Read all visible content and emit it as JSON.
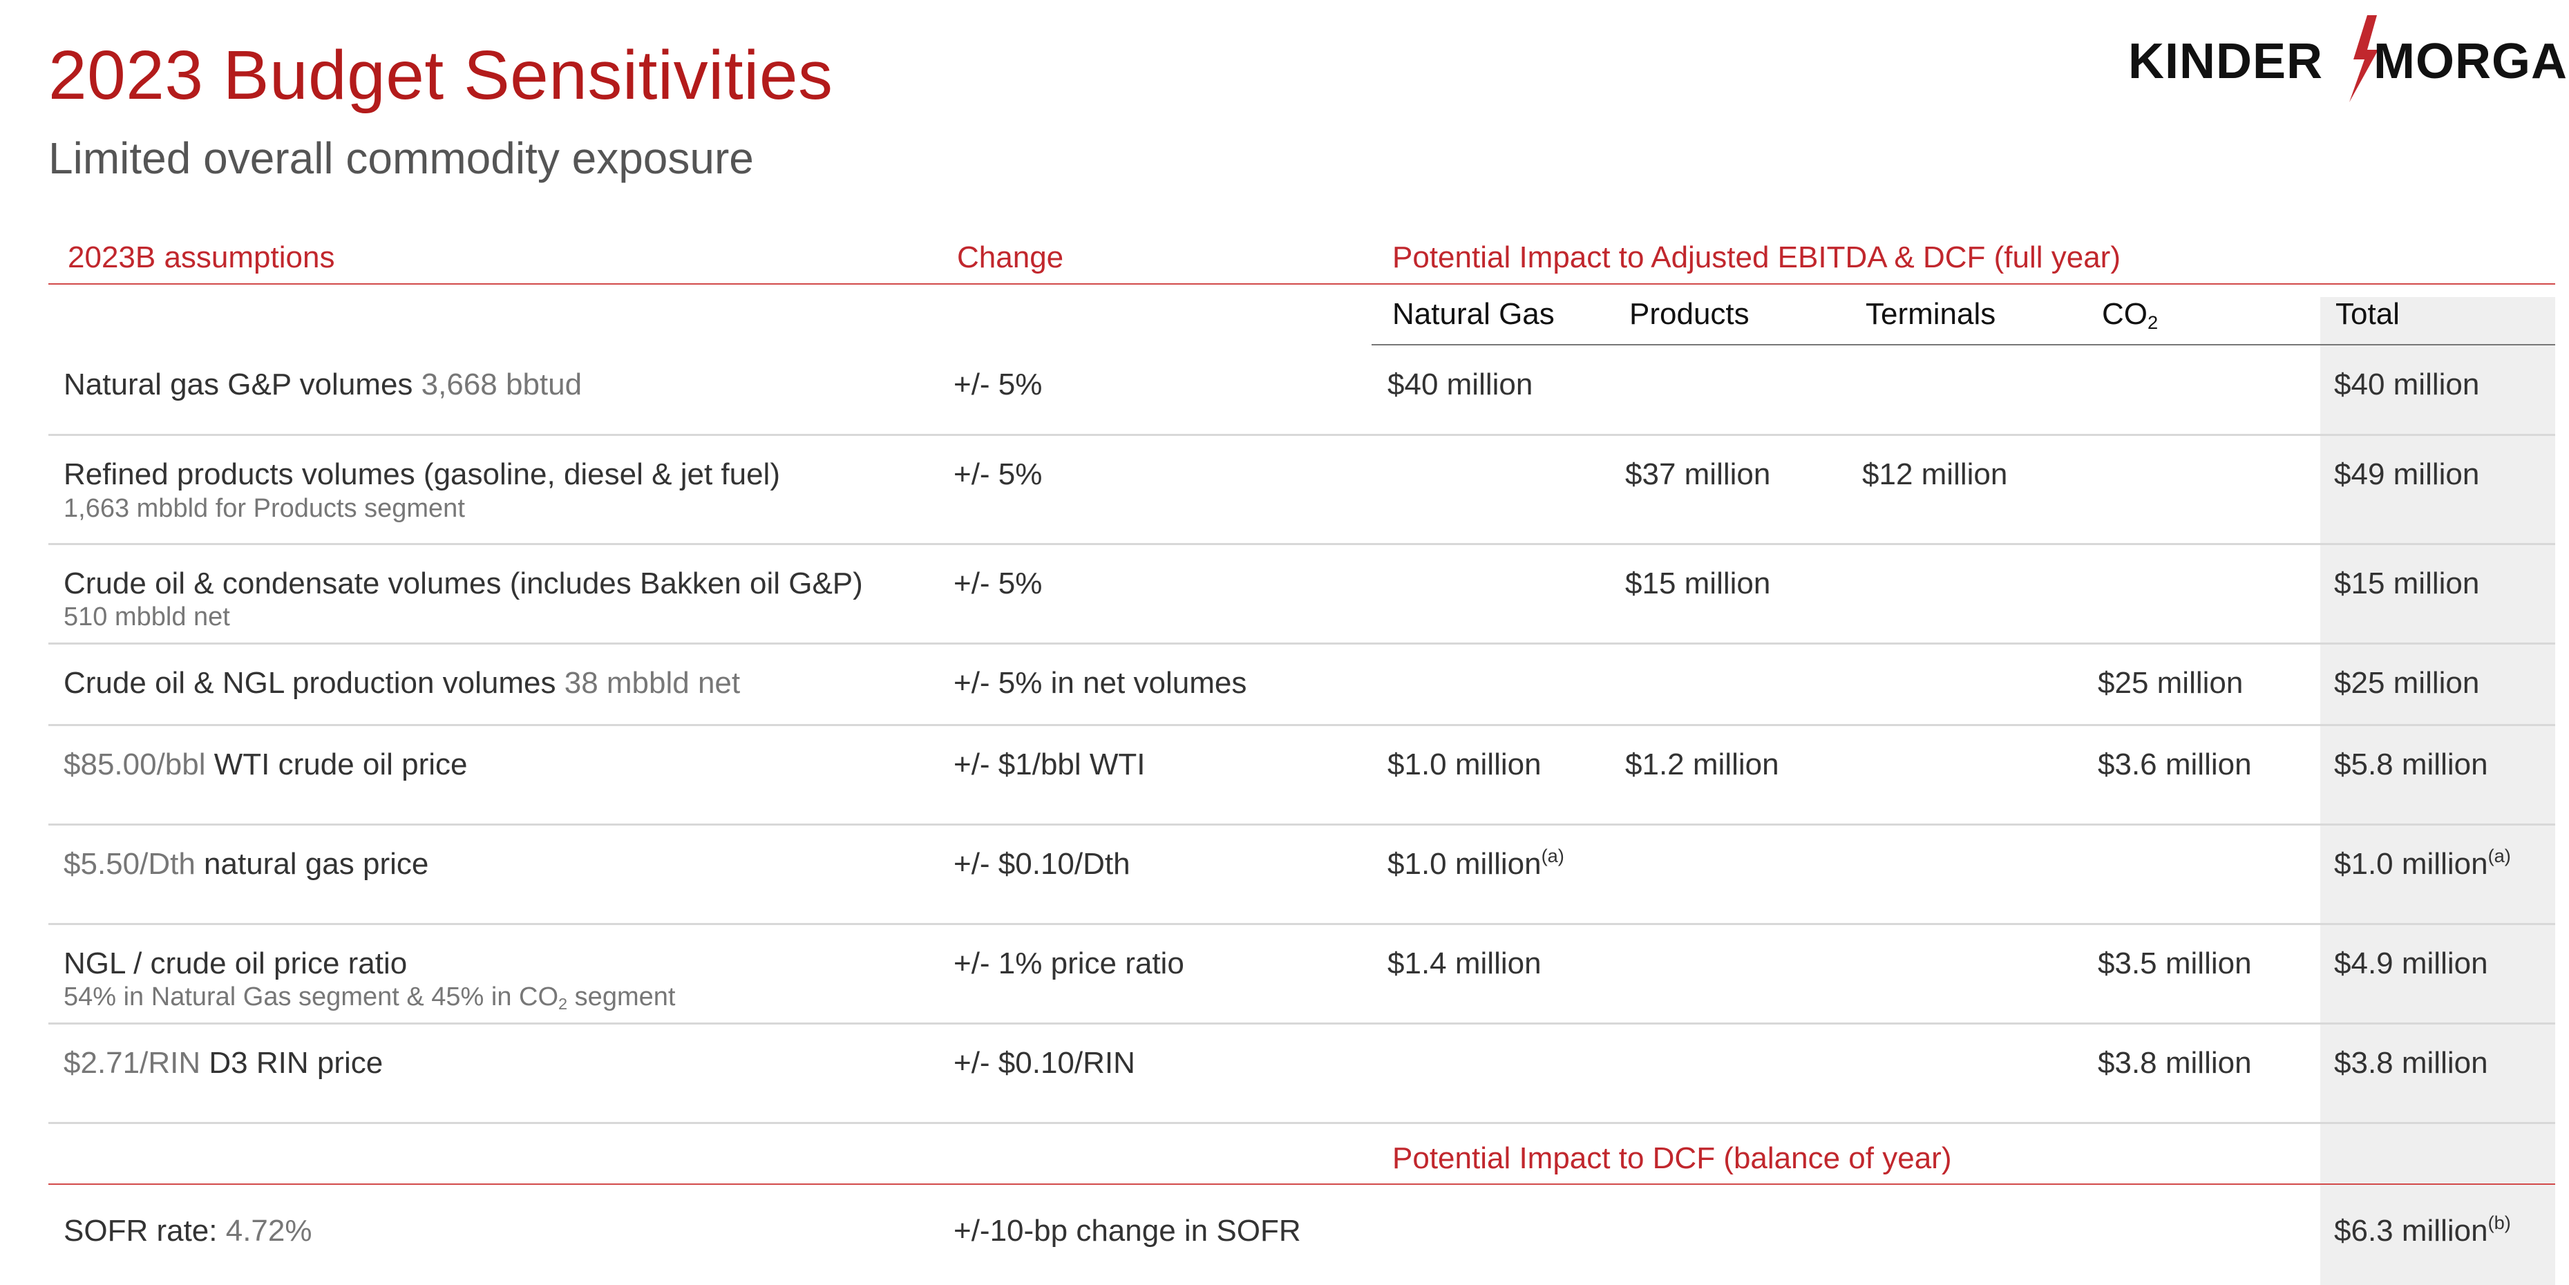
{
  "header": {
    "title": "2023 Budget Sensitivities",
    "subtitle": "Limited overall commodity exposure"
  },
  "logo": {
    "left": "KINDER",
    "right": "MORGAN",
    "icon": "lightning-bolt-icon"
  },
  "colors": {
    "accent": "#c1272d",
    "muted": "#777777",
    "total_bg": "#efefef"
  },
  "table": {
    "col_assumptions": "2023B assumptions",
    "col_change": "Change",
    "col_impact": "Potential Impact to Adjusted EBITDA & DCF (full year)",
    "sub_natural_gas": "Natural Gas",
    "sub_products": "Products",
    "sub_terminals": "Terminals",
    "sub_co2_base": "CO",
    "sub_co2_subscript": "2",
    "sub_total": "Total",
    "dcf_header": "Potential Impact to DCF (balance of year)",
    "rows": [
      {
        "label": "Natural gas G&P volumes",
        "label_value": "3,668 bbtud",
        "change": "+/- 5%",
        "natural_gas": "$40 million",
        "total": "$40 million"
      },
      {
        "label": "Refined products volumes (gasoline, diesel & jet fuel)",
        "sublabel": "1,663 mbbld for Products segment",
        "change": "+/- 5%",
        "products": "$37 million",
        "terminals": "$12 million",
        "total": "$49 million"
      },
      {
        "label": "Crude oil & condensate volumes (includes Bakken oil G&P)",
        "sublabel": "510 mbbld net",
        "change": "+/- 5%",
        "products": "$15 million",
        "total": "$15 million"
      },
      {
        "label": "Crude oil & NGL production volumes",
        "label_value": "38 mbbld net",
        "change": "+/- 5% in net volumes",
        "co2": "$25 million",
        "total": "$25 million"
      },
      {
        "label_value": "$85.00/bbl",
        "label": "WTI crude oil price",
        "change": "+/- $1/bbl WTI",
        "natural_gas": "$1.0 million",
        "products": "$1.2 million",
        "co2": "$3.6 million",
        "total": "$5.8 million"
      },
      {
        "label_value": "$5.50/Dth",
        "label": "natural gas price",
        "change": "+/- $0.10/Dth",
        "natural_gas": "$1.0 million",
        "natural_gas_note": "(a)",
        "total": "$1.0 million",
        "total_note": "(a)"
      },
      {
        "label": "NGL / crude oil price ratio",
        "sublabel_a": "54% in Natural Gas segment & 45% in CO",
        "sublabel_sub": "2",
        "sublabel_b": " segment",
        "change": "+/- 1% price ratio",
        "natural_gas": "$1.4 million",
        "co2": "$3.5 million",
        "total": "$4.9 million"
      },
      {
        "label_value": "$2.71/RIN",
        "label": "D3 RIN price",
        "change": "+/- $0.10/RIN",
        "co2": "$3.8 million",
        "total": "$3.8 million"
      }
    ],
    "sofr": {
      "label": "SOFR rate:",
      "label_value": "4.72%",
      "change": "+/-10-bp change in SOFR",
      "total": "$6.3 million",
      "total_note": "(b)"
    }
  }
}
